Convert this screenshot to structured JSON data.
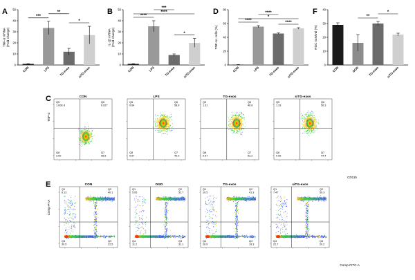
{
  "panel_letters": {
    "A": "A",
    "B": "B",
    "C": "C",
    "D": "D",
    "E": "E",
    "F": "F"
  },
  "colors": {
    "CON": "#1a1a1a",
    "LPS": "#999999",
    "TG-exos": "#6b6b6b",
    "siTG-exos": "#cfcfcf",
    "OGD": "#8c8c8c"
  },
  "chart_data": [
    {
      "id": "A",
      "type": "bar",
      "ylabel": "TNF-α mRNA\n(Fold change)",
      "categories": [
        "CON",
        "LPS",
        "TG-exos",
        "siTG-exos"
      ],
      "values": [
        1.0,
        33.5,
        12.0,
        27.0
      ],
      "errors": [
        0.2,
        6.0,
        3.0,
        8.0
      ],
      "ylim": [
        0,
        50
      ],
      "yticks": [
        0,
        10,
        20,
        30,
        40,
        50
      ],
      "significance": [
        {
          "from": 0,
          "to": 1,
          "label": "***"
        },
        {
          "from": 1,
          "to": 2,
          "label": "**"
        },
        {
          "from": 2,
          "to": 3,
          "label": "*"
        }
      ]
    },
    {
      "id": "B",
      "type": "bar",
      "ylabel": "IL-1β mRNA\n(Fold change)",
      "categories": [
        "CON",
        "LPS",
        "TG-exos",
        "siTG-exos"
      ],
      "values": [
        1.0,
        35.0,
        9.0,
        20.0
      ],
      "errors": [
        0.2,
        5.0,
        1.0,
        4.0
      ],
      "ylim": [
        0,
        50
      ],
      "yticks": [
        0,
        10,
        20,
        30,
        40,
        50
      ],
      "significance": [
        {
          "from": 0,
          "to": 1,
          "label": "****"
        },
        {
          "from": 0,
          "to": 3,
          "label": "****"
        },
        {
          "from": 1,
          "to": 2,
          "label": "***"
        },
        {
          "from": 2,
          "to": 3,
          "label": "*"
        }
      ]
    },
    {
      "id": "D",
      "type": "bar",
      "ylabel": "TNF-α+ cells (%)",
      "categories": [
        "CON",
        "LPS",
        "TG-exos",
        "siTG-exos"
      ],
      "values": [
        0.5,
        55.5,
        45.5,
        53.0
      ],
      "errors": [
        0.1,
        1.5,
        0.8,
        1.0
      ],
      "ylim": [
        0,
        80
      ],
      "yticks": [
        0,
        20,
        40,
        60,
        80
      ],
      "significance": [
        {
          "from": 0,
          "to": 1,
          "label": "****"
        },
        {
          "from": 0,
          "to": 3,
          "label": "*"
        },
        {
          "from": 1,
          "to": 2,
          "label": "****"
        },
        {
          "from": 2,
          "to": 3,
          "label": "****"
        }
      ]
    },
    {
      "id": "F",
      "type": "bar",
      "ylabel": "RGC survival (%)",
      "categories": [
        "CON",
        "OGD",
        "TG-exos",
        "siTG-exos"
      ],
      "values": [
        29.0,
        16.0,
        30.0,
        22.0
      ],
      "errors": [
        1.5,
        6.0,
        1.5,
        1.0
      ],
      "ylim": [
        0,
        40
      ],
      "yticks": [
        0,
        10,
        20,
        30,
        40
      ],
      "significance": [
        {
          "from": 1,
          "to": 2,
          "label": "**"
        },
        {
          "from": 2,
          "to": 3,
          "label": "*"
        }
      ]
    }
  ],
  "flow_C": {
    "yaxis_label": "TNF-α",
    "xaxis_label": "CD11b",
    "plots": [
      {
        "title": "CON",
        "quadrants": {
          "Q5": "1.00E-3",
          "Q6": "0.027",
          "Q7": "96.8",
          "Q8": "3.00"
        }
      },
      {
        "title": "LPS",
        "quadrants": {
          "Q5": "0.64",
          "Q6": "58.9",
          "Q7": "40.0",
          "Q8": "0.57"
        }
      },
      {
        "title": "TG-exos",
        "quadrants": {
          "Q5": "1.31",
          "Q6": "46.8",
          "Q7": "53.2",
          "Q8": "0.57"
        }
      },
      {
        "title": "siTG-exos",
        "quadrants": {
          "Q5": "1.33",
          "Q6": "56.3",
          "Q7": "44.4",
          "Q8": "0.05"
        }
      }
    ]
  },
  "flow_E": {
    "yaxis_label": "Comp-PI-A",
    "xaxis_label": "Comp-FITC-A",
    "plots": [
      {
        "title": "CON",
        "quadrants": {
          "Q1": "6.13",
          "Q2": "40.1",
          "Q3": "22.5",
          "Q4": "30.5"
        }
      },
      {
        "title": "OGD",
        "quadrants": {
          "Q1": "5.05",
          "Q2": "52.7",
          "Q3": "31.1",
          "Q4": "11.2"
        }
      },
      {
        "title": "TG-exos",
        "quadrants": {
          "Q1": "10.5",
          "Q2": "41.3",
          "Q3": "19.3",
          "Q4": "28.9"
        }
      },
      {
        "title": "siTG-exos",
        "quadrants": {
          "Q1": "7.47",
          "Q2": "50.3",
          "Q3": "20.2",
          "Q4": "22.7"
        }
      }
    ]
  }
}
